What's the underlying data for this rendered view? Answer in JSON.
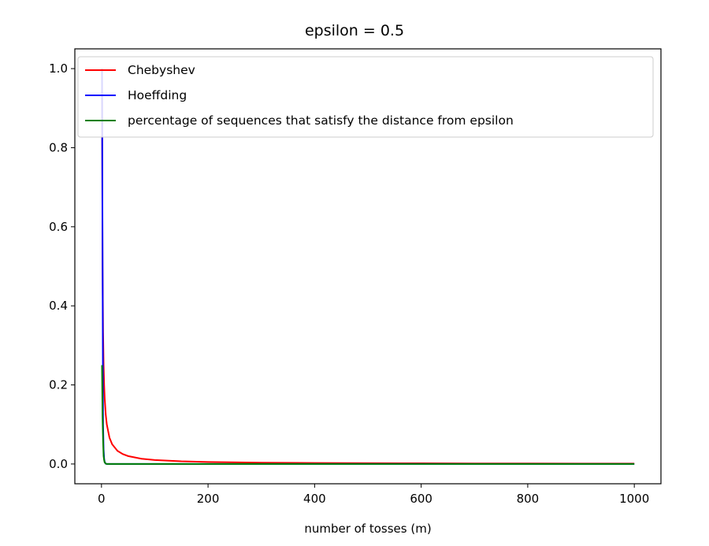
{
  "chart_data": {
    "type": "line",
    "title": "epsilon = 0.5",
    "xlabel": "number of tosses (m)",
    "ylabel": "",
    "xlim": [
      -50,
      1050
    ],
    "ylim": [
      -0.05,
      1.05
    ],
    "xticks": [
      0,
      200,
      400,
      600,
      800,
      1000
    ],
    "xtick_labels": [
      "0",
      "200",
      "400",
      "600",
      "800",
      "1000"
    ],
    "yticks": [
      0.0,
      0.2,
      0.4,
      0.6,
      0.8,
      1.0
    ],
    "ytick_labels": [
      "0.0",
      "0.2",
      "0.4",
      "0.6",
      "0.8",
      "1.0"
    ],
    "grid": false,
    "legend_position": "upper-left",
    "series": [
      {
        "name": "Chebyshev",
        "color": "#ff0000",
        "x": [
          1,
          2,
          3,
          4,
          5,
          6,
          8,
          10,
          15,
          20,
          30,
          40,
          50,
          75,
          100,
          150,
          200,
          300,
          400,
          500,
          600,
          700,
          800,
          900,
          1000
        ],
        "y": [
          1.0,
          0.5,
          0.3333,
          0.25,
          0.2,
          0.1667,
          0.125,
          0.1,
          0.0667,
          0.05,
          0.0333,
          0.025,
          0.02,
          0.0133,
          0.01,
          0.0067,
          0.005,
          0.0033,
          0.0025,
          0.002,
          0.0017,
          0.0014,
          0.0013,
          0.0011,
          0.001
        ]
      },
      {
        "name": "Hoeffding",
        "color": "#0000ff",
        "x": [
          1,
          2,
          3,
          4,
          5,
          6,
          8,
          10,
          15,
          20,
          50,
          100,
          1000
        ],
        "y": [
          1.0,
          0.5413,
          0.0996,
          0.0366,
          0.0135,
          0.005,
          0.0007,
          0.0001,
          0.0,
          0.0,
          0.0,
          0.0,
          0.0
        ]
      },
      {
        "name": "percentage of sequences that satisfy the distance from epsilon",
        "color": "#008000",
        "x": [
          1,
          2,
          3,
          4,
          5,
          6,
          8,
          10,
          15,
          20,
          50,
          100,
          1000
        ],
        "y": [
          0.25,
          0.12,
          0.06,
          0.02,
          0.01,
          0.004,
          0.001,
          0.0,
          0.0,
          0.0,
          0.0,
          0.0,
          0.0
        ]
      }
    ]
  }
}
